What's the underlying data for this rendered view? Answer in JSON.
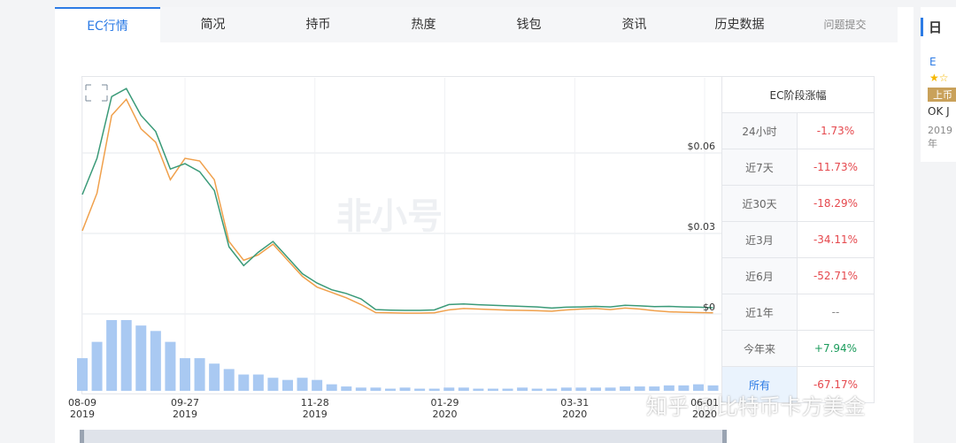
{
  "tabs": [
    "EC行情",
    "简况",
    "持币",
    "热度",
    "钱包",
    "资讯",
    "历史数据",
    "问题提交"
  ],
  "chart_data": {
    "type": "line",
    "x": [
      "2019-08-09",
      "2019-08-16",
      "2019-08-23",
      "2019-08-30",
      "2019-09-06",
      "2019-09-13",
      "2019-09-20",
      "2019-09-27",
      "2019-10-04",
      "2019-10-11",
      "2019-10-18",
      "2019-10-25",
      "2019-11-01",
      "2019-11-08",
      "2019-11-15",
      "2019-11-22",
      "2019-11-29",
      "2019-12-06",
      "2019-12-13",
      "2019-12-20",
      "2019-12-27",
      "2020-01-03",
      "2020-01-10",
      "2020-01-17",
      "2020-01-24",
      "2020-01-31",
      "2020-02-07",
      "2020-02-14",
      "2020-02-21",
      "2020-02-28",
      "2020-03-06",
      "2020-03-13",
      "2020-03-20",
      "2020-03-27",
      "2020-04-03",
      "2020-04-10",
      "2020-04-17",
      "2020-04-24",
      "2020-05-01",
      "2020-05-08",
      "2020-05-15",
      "2020-05-22",
      "2020-05-29",
      "2020-06-05"
    ],
    "series": [
      {
        "color": "#3a9a78",
        "values": [
          0.0445,
          0.058,
          0.081,
          0.084,
          0.074,
          0.068,
          0.054,
          0.056,
          0.053,
          0.046,
          0.025,
          0.018,
          0.023,
          0.027,
          0.021,
          0.015,
          0.0115,
          0.009,
          0.0076,
          0.0056,
          0.0016,
          0.0014,
          0.0013,
          0.0013,
          0.0015,
          0.0035,
          0.0037,
          0.0034,
          0.0032,
          0.003,
          0.0028,
          0.0026,
          0.0022,
          0.0025,
          0.0026,
          0.0028,
          0.0026,
          0.0032,
          0.003,
          0.0027,
          0.0028,
          0.0026,
          0.0025,
          0.0023
        ]
      },
      {
        "color": "#f0a04b",
        "values": [
          0.031,
          0.045,
          0.074,
          0.08,
          0.069,
          0.064,
          0.05,
          0.058,
          0.057,
          0.05,
          0.027,
          0.02,
          0.022,
          0.026,
          0.02,
          0.014,
          0.01,
          0.008,
          0.006,
          0.0035,
          0.0005,
          0.0004,
          0.0003,
          0.0003,
          0.0004,
          0.0015,
          0.002,
          0.0018,
          0.0016,
          0.0014,
          0.0013,
          0.0012,
          0.001,
          0.0015,
          0.0018,
          0.002,
          0.0016,
          0.0022,
          0.0018,
          0.0012,
          0.0008,
          0.0006,
          0.0005,
          0.0004
        ]
      }
    ],
    "volume": {
      "color": "#a9c9f2",
      "values": [
        30,
        45,
        65,
        65,
        60,
        55,
        45,
        30,
        30,
        25,
        20,
        15,
        15,
        12,
        10,
        12,
        10,
        6,
        4,
        3,
        3,
        2,
        3,
        2,
        2,
        3,
        3,
        2,
        2,
        2,
        3,
        2,
        2,
        3,
        3,
        3,
        3,
        4,
        4,
        4,
        5,
        5,
        6,
        5
      ]
    },
    "xlim": [
      "2019-08-09",
      "2020-06-09"
    ],
    "xticks": [
      {
        "value": "2019-08-09",
        "label": "08-09\n2019"
      },
      {
        "value": "2019-09-27",
        "label": "09-27\n2019"
      },
      {
        "value": "2019-11-28",
        "label": "11-28\n2019"
      },
      {
        "value": "2020-01-29",
        "label": "01-29\n2020"
      },
      {
        "value": "2020-03-31",
        "label": "03-31\n2020"
      },
      {
        "value": "2020-06-01",
        "label": "06-01\n2020"
      }
    ],
    "ylim": [
      0,
      0.088
    ],
    "yticks": [
      {
        "value": 0.06,
        "label": "$0.06"
      },
      {
        "value": 0.03,
        "label": "$0.03"
      },
      {
        "value": 0,
        "label": "$0"
      }
    ],
    "grid": true,
    "watermark": "非小号"
  },
  "table": {
    "title": "EC阶段涨幅",
    "rows": [
      [
        "24小时",
        "-1.73%"
      ],
      [
        "近7天",
        "-11.73%"
      ],
      [
        "近30天",
        "-18.29%"
      ],
      [
        "近3月",
        "-34.11%"
      ],
      [
        "近6月",
        "-52.71%"
      ],
      [
        "近1年",
        "--"
      ],
      [
        "今年来",
        "+7.94%"
      ],
      [
        "所有",
        "-67.17%"
      ]
    ]
  },
  "sidebar": {
    "title": "日",
    "coin": "E",
    "badge": "上币",
    "exchange": "OK J",
    "date": "2019年"
  },
  "watermark": "知乎 @比特币卡方美金"
}
